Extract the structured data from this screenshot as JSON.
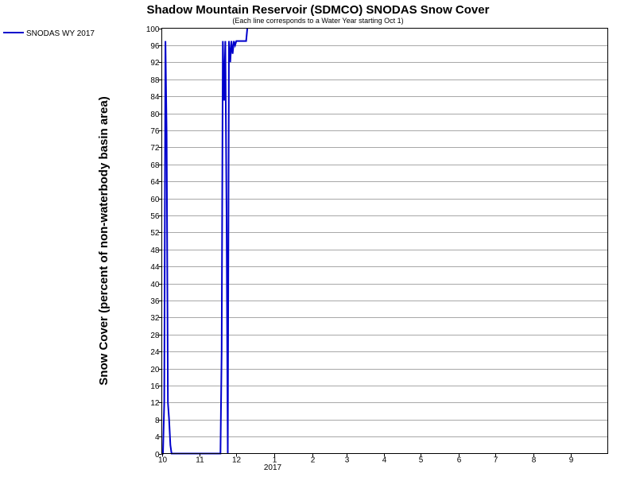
{
  "chart_data": {
    "type": "line",
    "title": "Shadow Mountain Reservoir (SDMCO) SNODAS Snow Cover",
    "subtitle": "(Each line corresponds to a Water Year starting Oct 1)",
    "ylabel": "Snow Cover (percent of non-waterbody basin area)",
    "xlabel": "",
    "ylim": [
      0,
      100
    ],
    "y_ticks": [
      0,
      4,
      8,
      12,
      16,
      20,
      24,
      28,
      32,
      36,
      40,
      44,
      48,
      52,
      56,
      60,
      64,
      68,
      72,
      76,
      80,
      84,
      88,
      92,
      96,
      100
    ],
    "x_tick_labels": [
      "10",
      "11",
      "12",
      "1",
      "2",
      "3",
      "4",
      "5",
      "6",
      "7",
      "8",
      "9"
    ],
    "x_year_label": "2017",
    "grid": true,
    "legend_placement": "top-left",
    "colors": {
      "series": "#0000cc",
      "grid": "#a8a8a8",
      "frame": "#000000"
    },
    "series": [
      {
        "name": "SNODAS WY 2017",
        "points": [
          [
            "2016-10-01",
            0
          ],
          [
            "2016-10-02",
            0
          ],
          [
            "2016-10-03",
            12
          ],
          [
            "2016-10-04",
            97
          ],
          [
            "2016-10-05",
            75
          ],
          [
            "2016-10-06",
            12
          ],
          [
            "2016-10-07",
            8
          ],
          [
            "2016-10-08",
            2
          ],
          [
            "2016-10-09",
            0
          ],
          [
            "2016-10-15",
            0
          ],
          [
            "2016-10-30",
            0
          ],
          [
            "2016-11-15",
            0
          ],
          [
            "2016-11-18",
            0
          ],
          [
            "2016-11-19",
            24
          ],
          [
            "2016-11-20",
            97
          ],
          [
            "2016-11-21",
            83
          ],
          [
            "2016-11-22",
            97
          ],
          [
            "2016-11-23",
            56
          ],
          [
            "2016-11-24",
            0
          ],
          [
            "2016-11-25",
            97
          ],
          [
            "2016-11-26",
            92
          ],
          [
            "2016-11-27",
            97
          ],
          [
            "2016-11-28",
            94
          ],
          [
            "2016-11-29",
            97
          ],
          [
            "2016-11-30",
            96
          ],
          [
            "2016-12-01",
            97
          ],
          [
            "2016-12-05",
            97
          ],
          [
            "2016-12-09",
            97
          ],
          [
            "2016-12-10",
            100
          ]
        ]
      }
    ]
  }
}
